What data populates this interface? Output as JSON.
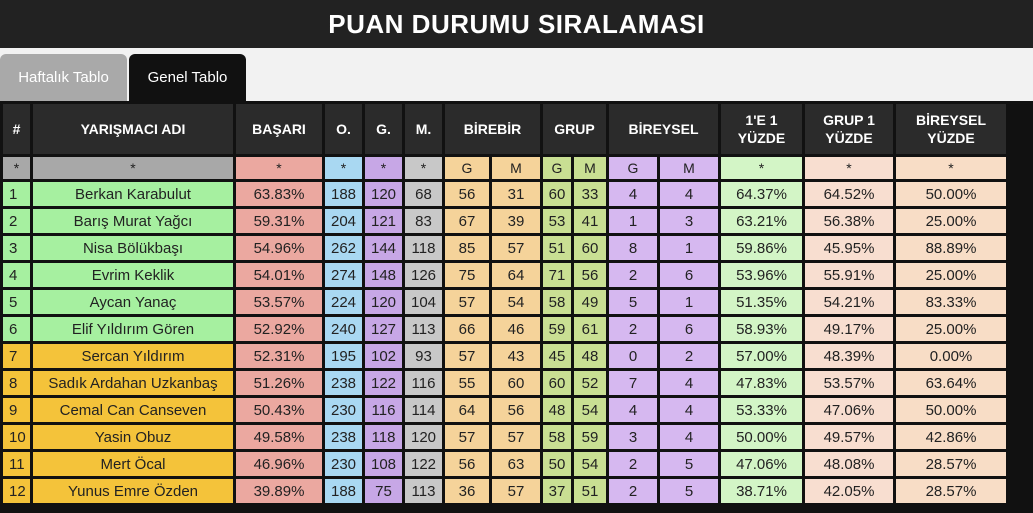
{
  "title": "PUAN DURUMU SIRALAMASI",
  "tabs": [
    {
      "label": "Haftalık Tablo",
      "active": false
    },
    {
      "label": "Genel Tablo",
      "active": true
    }
  ],
  "columns": {
    "idx": "#",
    "name": "YARIŞMACI ADI",
    "basari": "BAŞARI",
    "o": "O.",
    "g": "G.",
    "m": "M.",
    "birebir": "BİREBİR",
    "grup": "GRUP",
    "bireysel": "BİREYSEL",
    "p1_line1": "1'E 1",
    "p1_line2": "YÜZDE",
    "p2_line1": "GRUP 1",
    "p2_line2": "YÜZDE",
    "p3_line1": "BİREYSEL",
    "p3_line2": "YÜZDE"
  },
  "filter_symbol": "*",
  "sub_g": "G",
  "sub_m": "M",
  "rows": [
    [
      "1",
      "Berkan Karabulut",
      "63.83%",
      "188",
      "120",
      "68",
      "56",
      "31",
      "60",
      "33",
      "4",
      "4",
      "64.37%",
      "64.52%",
      "50.00%"
    ],
    [
      "2",
      "Barış Murat Yağcı",
      "59.31%",
      "204",
      "121",
      "83",
      "67",
      "39",
      "53",
      "41",
      "1",
      "3",
      "63.21%",
      "56.38%",
      "25.00%"
    ],
    [
      "3",
      "Nisa Bölükbaşı",
      "54.96%",
      "262",
      "144",
      "118",
      "85",
      "57",
      "51",
      "60",
      "8",
      "1",
      "59.86%",
      "45.95%",
      "88.89%"
    ],
    [
      "4",
      "Evrim Keklik",
      "54.01%",
      "274",
      "148",
      "126",
      "75",
      "64",
      "71",
      "56",
      "2",
      "6",
      "53.96%",
      "55.91%",
      "25.00%"
    ],
    [
      "5",
      "Aycan Yanaç",
      "53.57%",
      "224",
      "120",
      "104",
      "57",
      "54",
      "58",
      "49",
      "5",
      "1",
      "51.35%",
      "54.21%",
      "83.33%"
    ],
    [
      "6",
      "Elif Yıldırım Gören",
      "52.92%",
      "240",
      "127",
      "113",
      "66",
      "46",
      "59",
      "61",
      "2",
      "6",
      "58.93%",
      "49.17%",
      "25.00%"
    ],
    [
      "7",
      "Sercan Yıldırım",
      "52.31%",
      "195",
      "102",
      "93",
      "57",
      "43",
      "45",
      "48",
      "0",
      "2",
      "57.00%",
      "48.39%",
      "0.00%"
    ],
    [
      "8",
      "Sadık Ardahan Uzkanbaş",
      "51.26%",
      "238",
      "122",
      "116",
      "55",
      "60",
      "60",
      "52",
      "7",
      "4",
      "47.83%",
      "53.57%",
      "63.64%"
    ],
    [
      "9",
      "Cemal Can Canseven",
      "50.43%",
      "230",
      "116",
      "114",
      "64",
      "56",
      "48",
      "54",
      "4",
      "4",
      "53.33%",
      "47.06%",
      "50.00%"
    ],
    [
      "10",
      "Yasin Obuz",
      "49.58%",
      "238",
      "118",
      "120",
      "57",
      "57",
      "58",
      "59",
      "3",
      "4",
      "50.00%",
      "49.57%",
      "42.86%"
    ],
    [
      "11",
      "Mert Öcal",
      "46.96%",
      "230",
      "108",
      "122",
      "56",
      "63",
      "50",
      "54",
      "2",
      "5",
      "47.06%",
      "48.08%",
      "28.57%"
    ],
    [
      "12",
      "Yunus Emre Özden",
      "39.89%",
      "188",
      "75",
      "113",
      "36",
      "57",
      "37",
      "51",
      "2",
      "5",
      "38.71%",
      "42.05%",
      "28.57%"
    ]
  ],
  "highlight_top": 6,
  "colors": {
    "top_group": "#a6f0a0",
    "rest_group": "#f4c33a",
    "header_bg": "#222222"
  }
}
